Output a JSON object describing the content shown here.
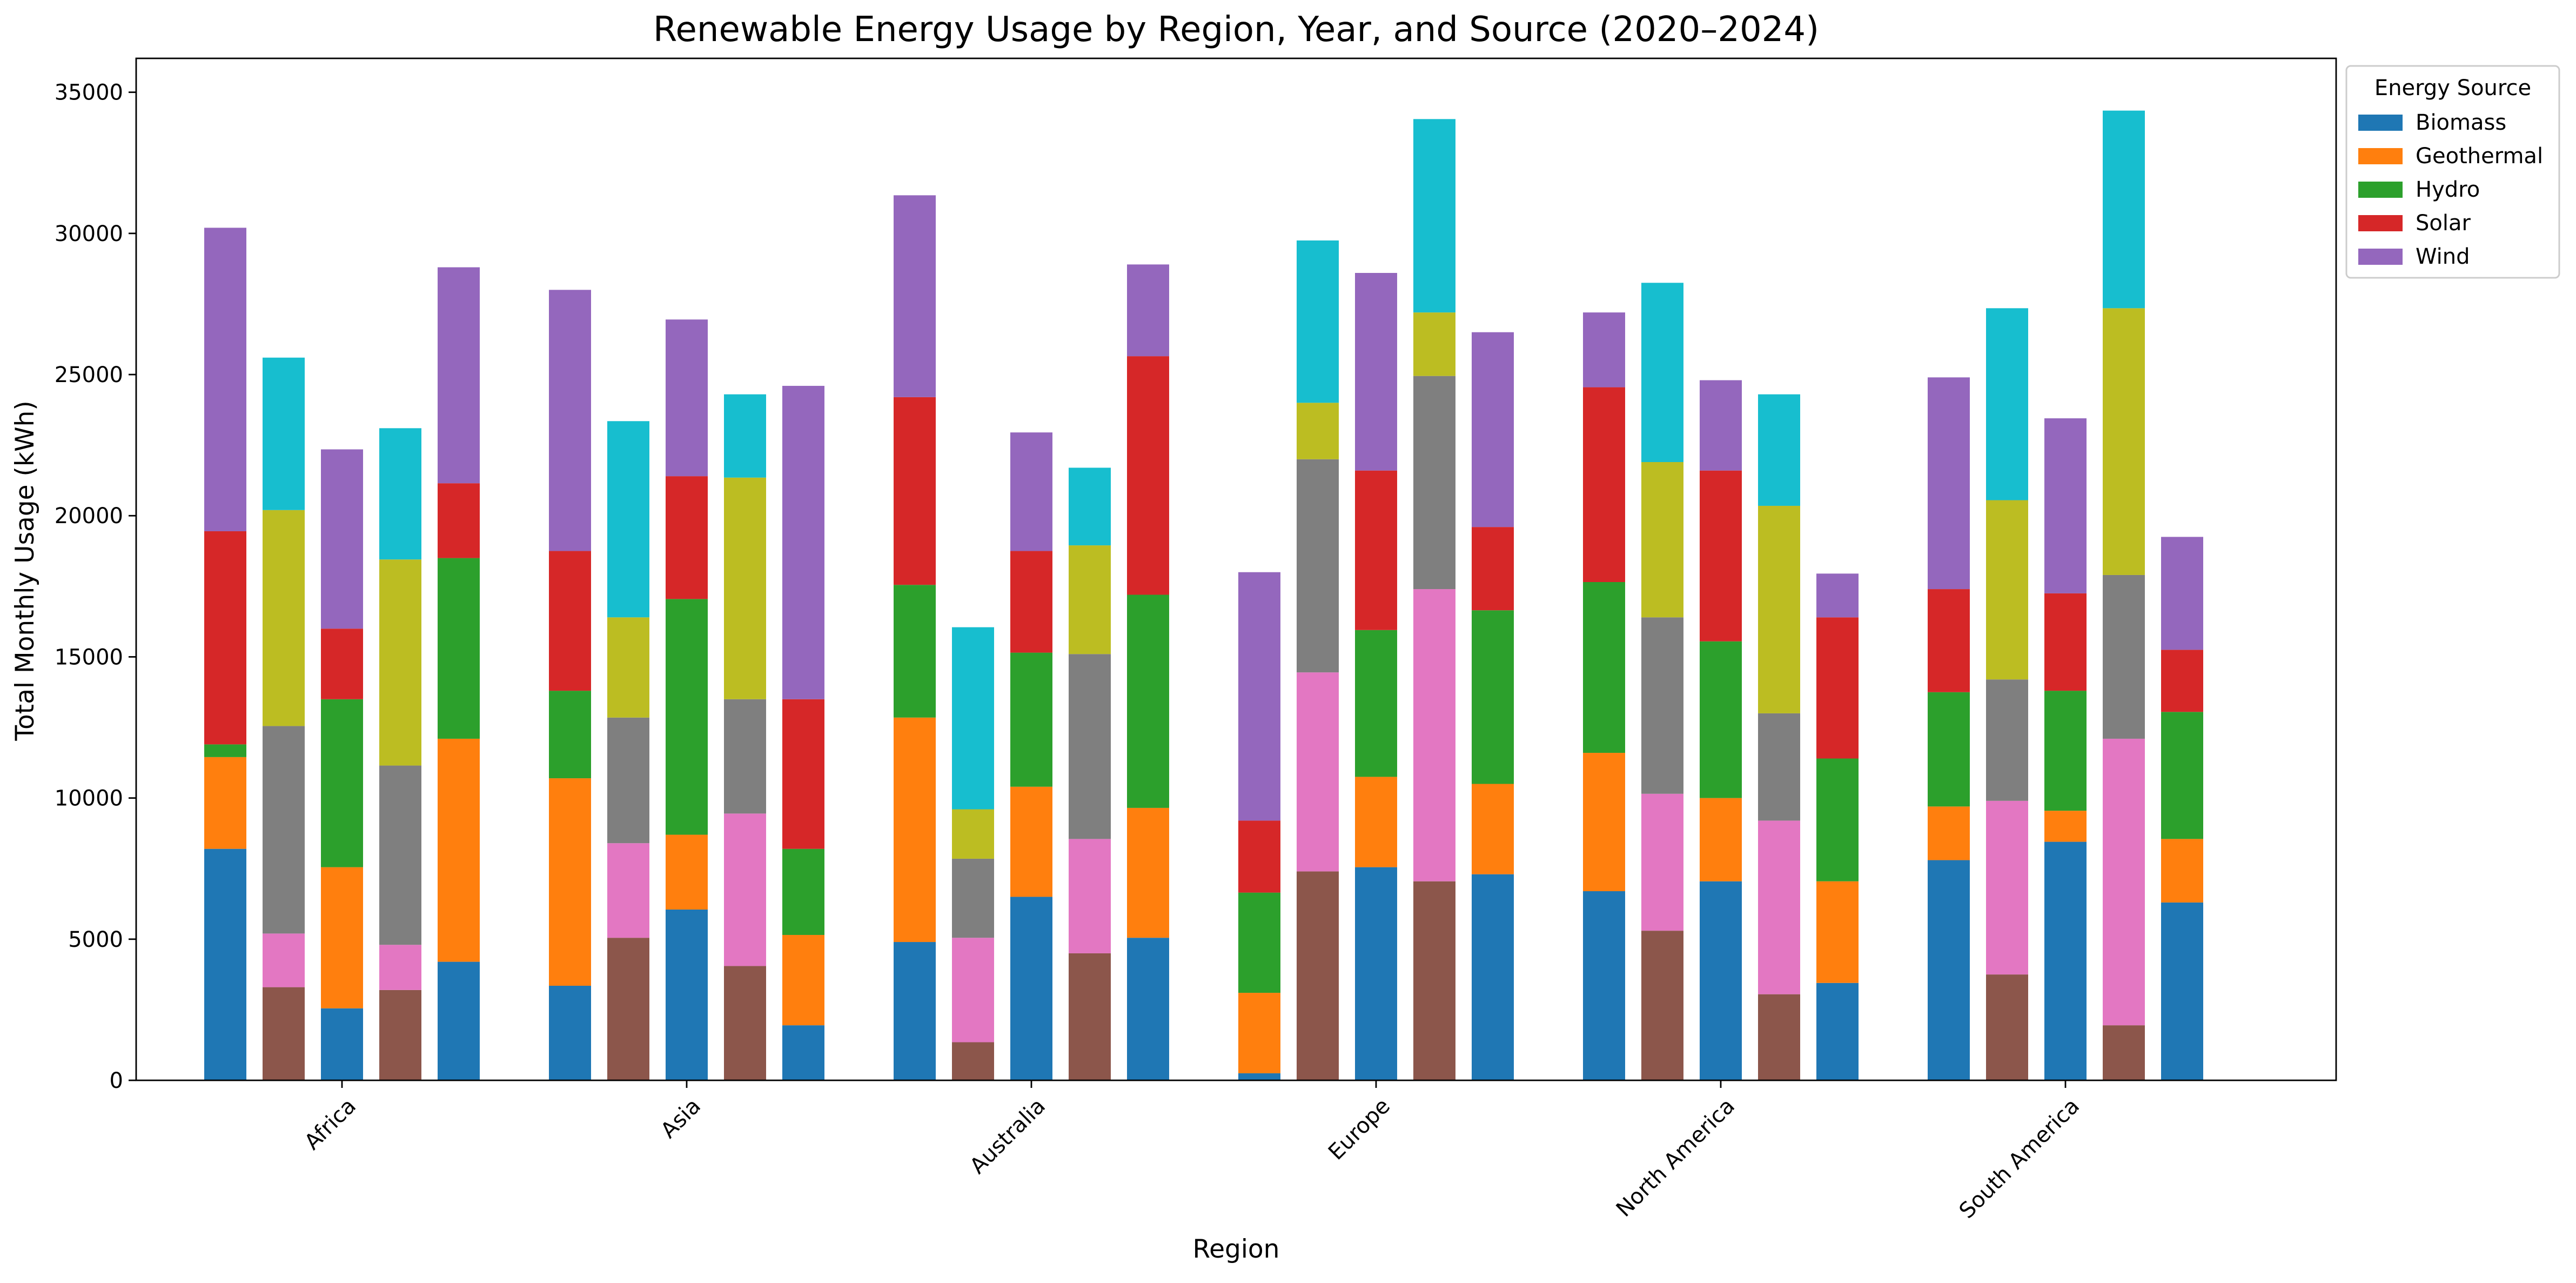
{
  "chart_data": {
    "type": "bar",
    "stacked": true,
    "title": "Renewable Energy Usage by Region, Year, and Source (2020–2024)",
    "xlabel": "Region",
    "ylabel": "Total Monthly Usage (kWh)",
    "ylim": [
      0,
      36200
    ],
    "y_ticks": [
      0,
      5000,
      10000,
      15000,
      20000,
      25000,
      30000,
      35000
    ],
    "grid": false,
    "categories": [
      "Africa",
      "Asia",
      "Australia",
      "Europe",
      "North America",
      "South America"
    ],
    "bars_per_category": 5,
    "legend": {
      "title": "Energy Source",
      "placement": "outside-top-right",
      "entries": [
        "Biomass",
        "Geothermal",
        "Hydro",
        "Solar",
        "Wind"
      ]
    },
    "colors": {
      "Biomass": "#1f77b4",
      "Geothermal": "#ff7f0e",
      "Hydro": "#2ca02c",
      "Solar": "#d62728",
      "Wind": "#9467bd",
      "brown": "#8c564b",
      "pink": "#e377c2",
      "gray": "#7f7f7f",
      "olive": "#bcbd22",
      "cyan": "#17becf"
    },
    "bar_color_cycle": [
      [
        "#1f77b4",
        "#ff7f0e",
        "#2ca02c",
        "#d62728",
        "#9467bd"
      ],
      [
        "#8c564b",
        "#e377c2",
        "#7f7f7f",
        "#bcbd22",
        "#17becf"
      ]
    ],
    "series": [
      {
        "name": "Biomass",
        "values": [
          [
            8200,
            3300,
            2550,
            3200,
            4200
          ],
          [
            3350,
            5050,
            6050,
            4050,
            1950
          ],
          [
            4900,
            1350,
            6500,
            4500,
            5050
          ],
          [
            250,
            7400,
            7550,
            7050,
            7300
          ],
          [
            6700,
            5300,
            7050,
            3050,
            3450
          ],
          [
            7800,
            3750,
            8450,
            1950,
            6300
          ]
        ]
      },
      {
        "name": "Geothermal",
        "values": [
          [
            3250,
            1900,
            5000,
            1600,
            7900
          ],
          [
            7350,
            3350,
            2650,
            5400,
            3200
          ],
          [
            7950,
            3700,
            3900,
            4050,
            4600
          ],
          [
            2850,
            7050,
            3200,
            10350,
            3200
          ],
          [
            4900,
            4850,
            2950,
            6150,
            3600
          ],
          [
            1900,
            6150,
            1100,
            10150,
            2250
          ]
        ]
      },
      {
        "name": "Hydro",
        "values": [
          [
            450,
            7350,
            5950,
            6350,
            6400
          ],
          [
            3100,
            4450,
            8350,
            4050,
            3050
          ],
          [
            4700,
            2800,
            4750,
            6550,
            7550
          ],
          [
            3550,
            7550,
            5200,
            7550,
            6150
          ],
          [
            6050,
            6250,
            5550,
            3800,
            4350
          ],
          [
            4050,
            4300,
            4250,
            5800,
            4500
          ]
        ]
      },
      {
        "name": "Solar",
        "values": [
          [
            7550,
            7650,
            2500,
            7300,
            2650
          ],
          [
            4950,
            3550,
            4350,
            7850,
            5300
          ],
          [
            6650,
            1750,
            3600,
            3850,
            8450
          ],
          [
            2550,
            2000,
            5650,
            2250,
            2950
          ],
          [
            6900,
            5500,
            6050,
            7350,
            5000
          ],
          [
            3650,
            6350,
            3450,
            9450,
            2200
          ]
        ]
      },
      {
        "name": "Wind",
        "values": [
          [
            10750,
            5400,
            6350,
            4650,
            7650
          ],
          [
            9250,
            6950,
            5550,
            2950,
            11100
          ],
          [
            7150,
            6450,
            4200,
            2750,
            3250
          ],
          [
            8800,
            5750,
            7000,
            6850,
            6900
          ],
          [
            2650,
            6350,
            3200,
            3950,
            1550
          ],
          [
            7500,
            6800,
            6200,
            7000,
            4000
          ]
        ]
      }
    ]
  }
}
